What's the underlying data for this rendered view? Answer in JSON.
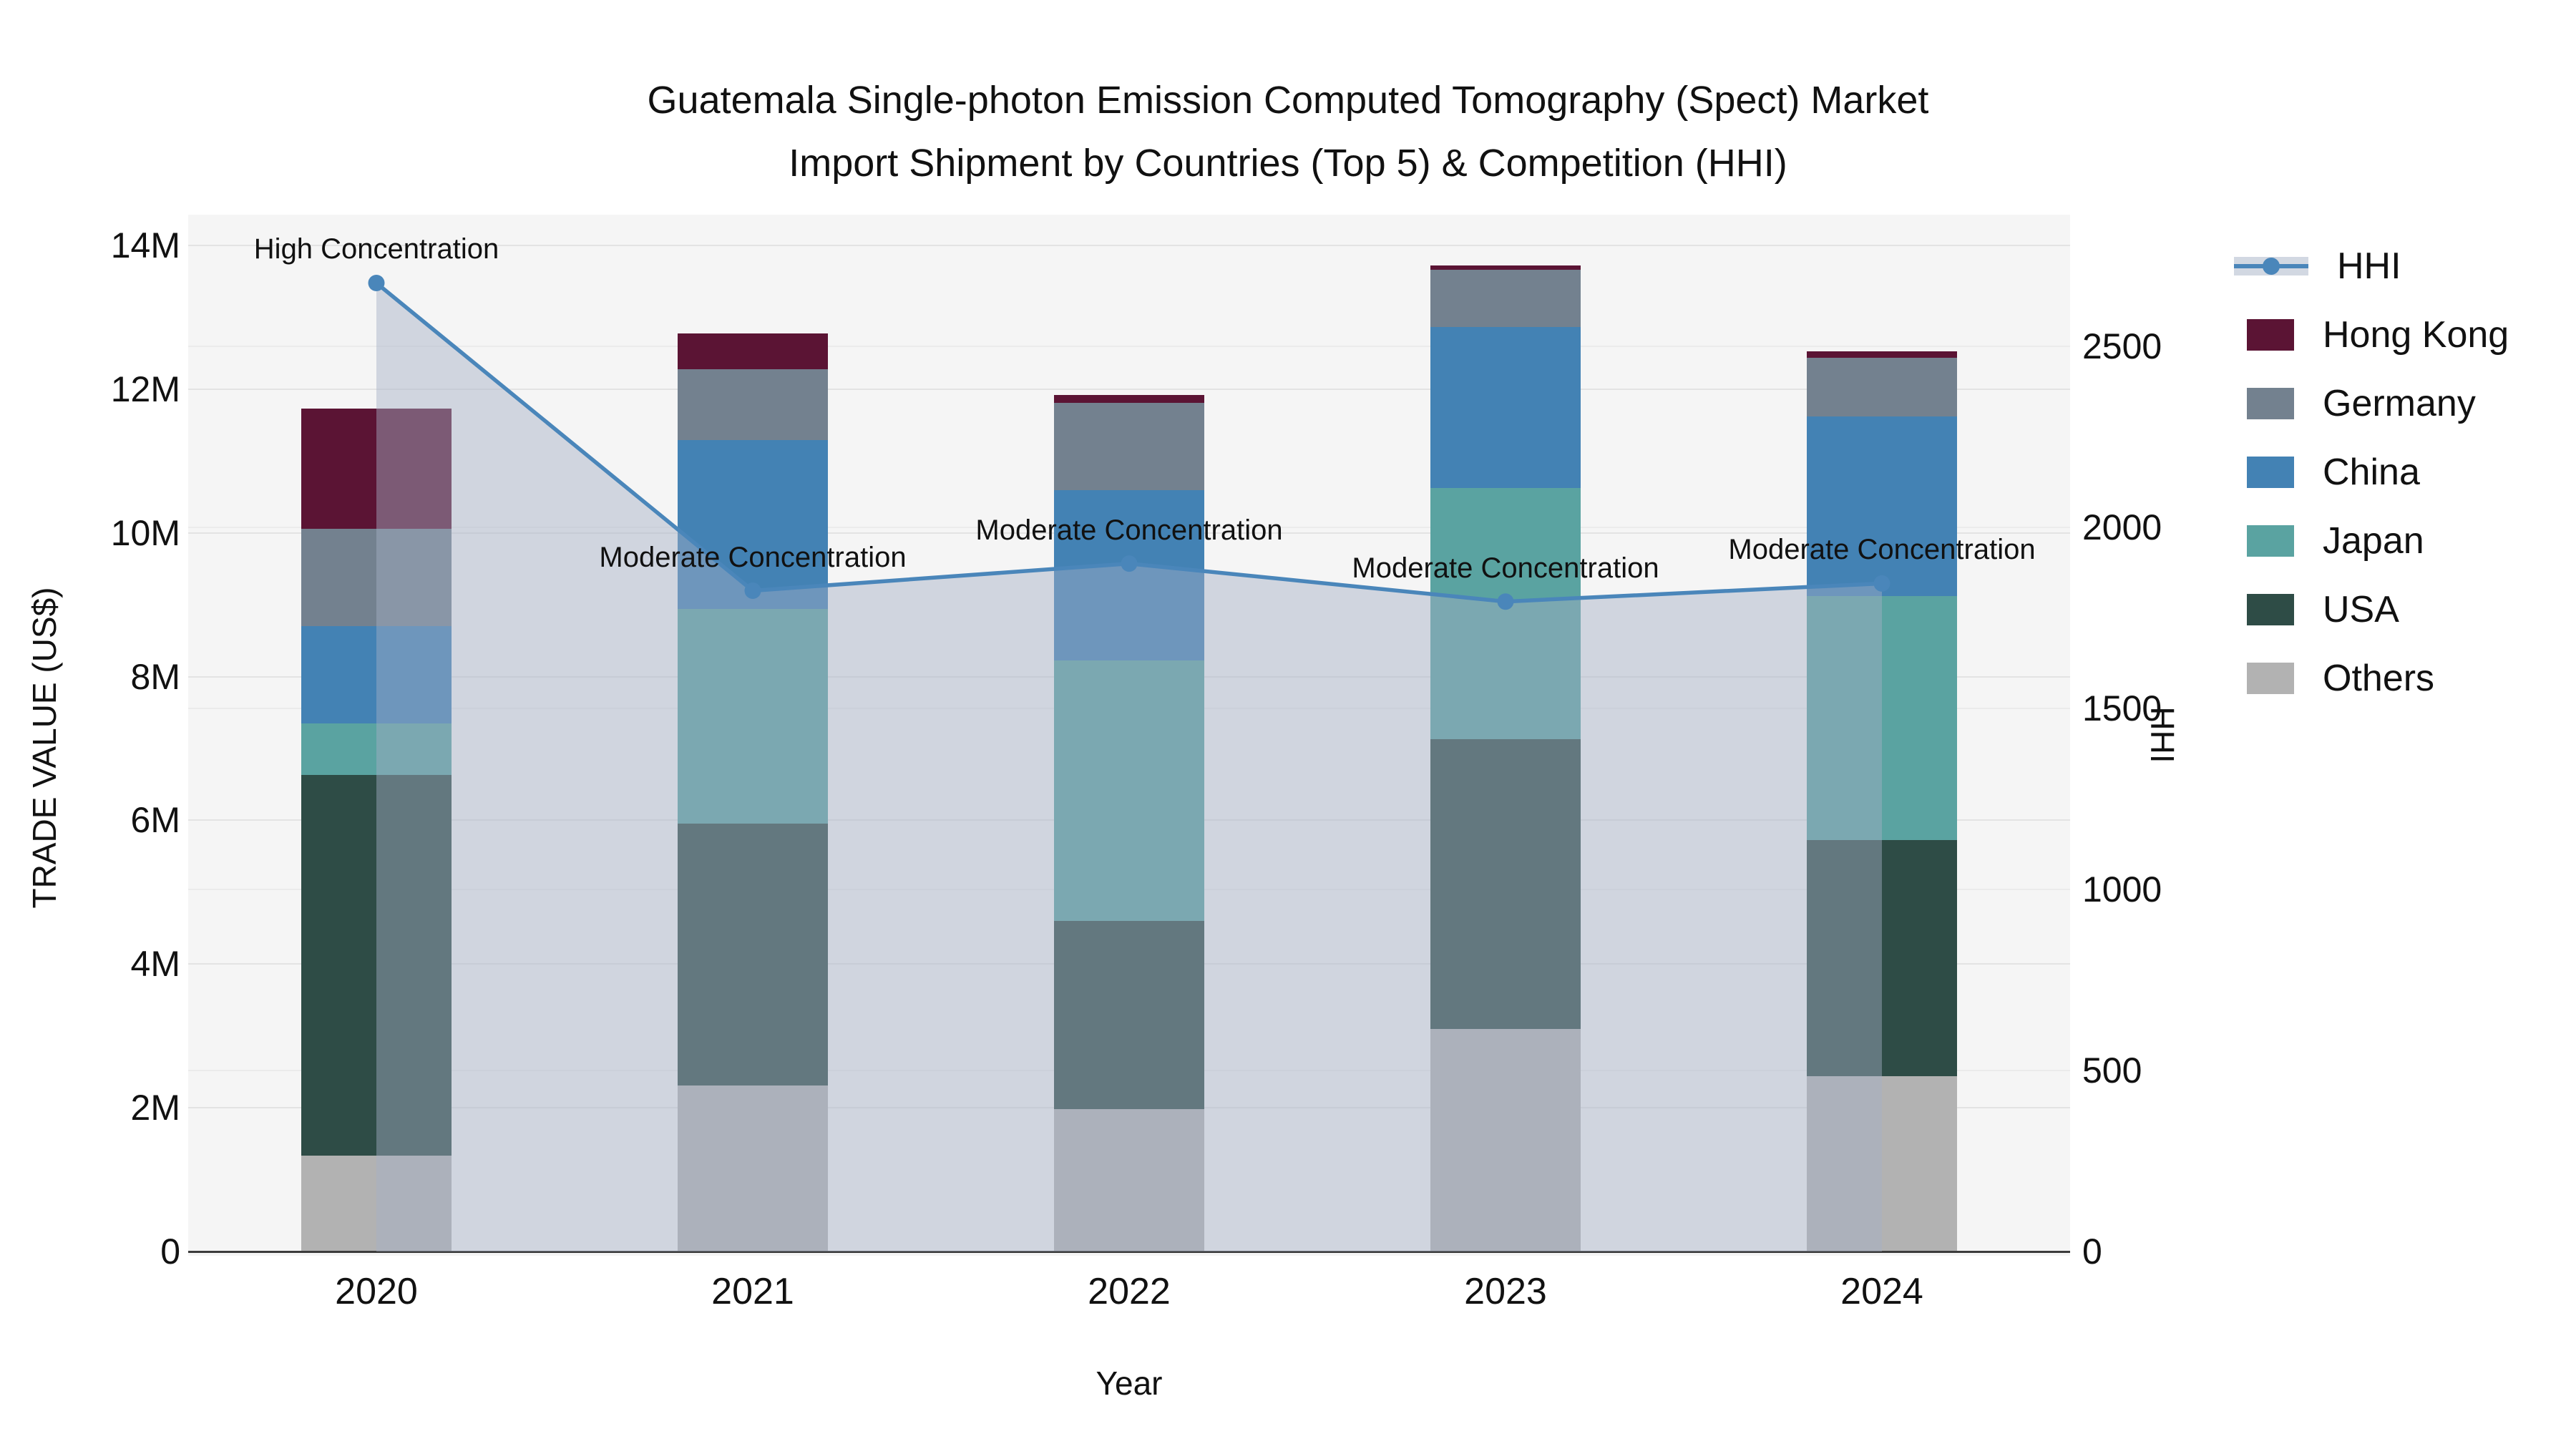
{
  "title": {
    "line1": "Guatemala Single-photon Emission Computed Tomography (Spect) Market",
    "line2": "Import Shipment by Countries (Top 5) & Competition (HHI)"
  },
  "axes": {
    "x": {
      "title": "Year",
      "ticks": [
        "2020",
        "2021",
        "2022",
        "2023",
        "2024"
      ]
    },
    "y_left": {
      "title": "TRADE VALUE (US$)",
      "ticks": [
        {
          "label": "0",
          "value": 0
        },
        {
          "label": "2M",
          "value": 2
        },
        {
          "label": "4M",
          "value": 4
        },
        {
          "label": "6M",
          "value": 6
        },
        {
          "label": "8M",
          "value": 8
        },
        {
          "label": "10M",
          "value": 10
        },
        {
          "label": "12M",
          "value": 12
        },
        {
          "label": "14M",
          "value": 14
        }
      ]
    },
    "y_right": {
      "title": "HHI",
      "ticks": [
        {
          "label": "0",
          "value": 0
        },
        {
          "label": "500",
          "value": 500
        },
        {
          "label": "1000",
          "value": 1000
        },
        {
          "label": "1500",
          "value": 1500
        },
        {
          "label": "2000",
          "value": 2000
        },
        {
          "label": "2500",
          "value": 2500
        }
      ]
    }
  },
  "chart_data": {
    "type": "bar",
    "stacked": true,
    "value_unit": "USD millions",
    "categories": [
      "2020",
      "2021",
      "2022",
      "2023",
      "2024"
    ],
    "series": [
      {
        "name": "Others",
        "color": "#b2b2b2",
        "values": [
          1.33,
          2.31,
          1.98,
          3.1,
          2.44
        ]
      },
      {
        "name": "USA",
        "color": "#2e4c46",
        "values": [
          5.3,
          3.64,
          2.62,
          4.03,
          3.29
        ]
      },
      {
        "name": "Japan",
        "color": "#5aa3a1",
        "values": [
          0.72,
          2.99,
          3.62,
          3.49,
          3.39
        ]
      },
      {
        "name": "China",
        "color": "#4382b4",
        "values": [
          1.35,
          2.35,
          2.37,
          2.24,
          2.5
        ]
      },
      {
        "name": "Germany",
        "color": "#73818f",
        "values": [
          1.36,
          0.99,
          1.22,
          0.8,
          0.82
        ]
      },
      {
        "name": "Hong Kong",
        "color": "#5b1434",
        "values": [
          1.67,
          0.5,
          0.11,
          0.06,
          0.09
        ]
      }
    ],
    "totals": [
      11.73,
      12.78,
      11.92,
      13.72,
      12.53
    ],
    "hhi_line": {
      "name": "HHI",
      "color": "#4a86ba",
      "fill_color": "rgba(164,175,197,0.45)",
      "values": [
        2675,
        1825,
        1900,
        1795,
        1845
      ]
    },
    "annotations": [
      {
        "category": "2020",
        "label": "High Concentration"
      },
      {
        "category": "2021",
        "label": "Moderate Concentration"
      },
      {
        "category": "2022",
        "label": "Moderate Concentration"
      },
      {
        "category": "2023",
        "label": "Moderate Concentration"
      },
      {
        "category": "2024",
        "label": "Moderate Concentration"
      }
    ],
    "ylim_left": [
      0,
      14
    ],
    "ylim_right": [
      0,
      2864
    ],
    "grid": true,
    "legend_position": "right"
  },
  "legend": {
    "items": [
      {
        "label": "HHI",
        "type": "line"
      },
      {
        "label": "Hong Kong",
        "type": "swatch"
      },
      {
        "label": "Germany",
        "type": "swatch"
      },
      {
        "label": "China",
        "type": "swatch"
      },
      {
        "label": "Japan",
        "type": "swatch"
      },
      {
        "label": "USA",
        "type": "swatch"
      },
      {
        "label": "Others",
        "type": "swatch"
      }
    ]
  }
}
